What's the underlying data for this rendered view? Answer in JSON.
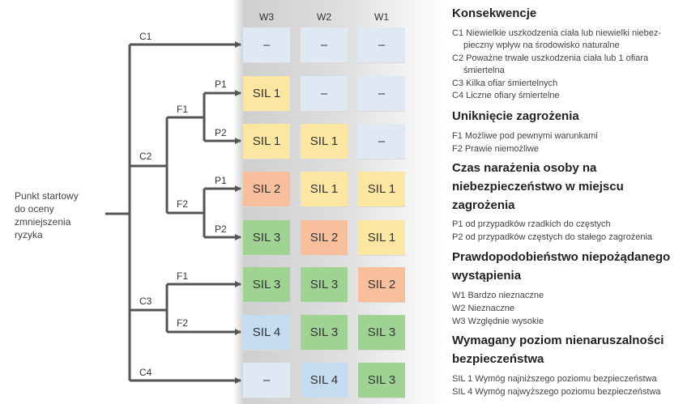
{
  "start_label": [
    "Punkt startowy",
    "do oceny",
    "zmniejszenia",
    "ryzyka"
  ],
  "columns": [
    "W3",
    "W2",
    "W1"
  ],
  "branches": {
    "c1": "C1",
    "c2": "C2",
    "c3": "C3",
    "c4": "C4",
    "c2_f1": "F1",
    "c2_f2": "F2",
    "c2_f1_p1": "P1",
    "c2_f1_p2": "P2",
    "c2_f2_p1": "P1",
    "c2_f2_p2": "P2",
    "c3_f1": "F1",
    "c3_f2": "F2"
  },
  "matrix": [
    [
      {
        "text": "–",
        "color": "blue"
      },
      {
        "text": "–",
        "color": "blue"
      },
      {
        "text": "–",
        "color": "blue"
      }
    ],
    [
      {
        "text": "SIL 1",
        "color": "yellow"
      },
      {
        "text": "–",
        "color": "blue"
      },
      {
        "text": "–",
        "color": "blue"
      }
    ],
    [
      {
        "text": "SIL 1",
        "color": "yellow"
      },
      {
        "text": "SIL 1",
        "color": "yellow"
      },
      {
        "text": "–",
        "color": "blue"
      }
    ],
    [
      {
        "text": "SIL 2",
        "color": "orange"
      },
      {
        "text": "SIL 1",
        "color": "yellow"
      },
      {
        "text": "SIL 1",
        "color": "yellow"
      }
    ],
    [
      {
        "text": "SIL 3",
        "color": "green"
      },
      {
        "text": "SIL 2",
        "color": "orange"
      },
      {
        "text": "SIL 1",
        "color": "yellow"
      }
    ],
    [
      {
        "text": "SIL 3",
        "color": "green"
      },
      {
        "text": "SIL 3",
        "color": "green"
      },
      {
        "text": "SIL 2",
        "color": "orange"
      }
    ],
    [
      {
        "text": "SIL 4",
        "color": "sblue"
      },
      {
        "text": "SIL 3",
        "color": "green"
      },
      {
        "text": "SIL 3",
        "color": "green"
      }
    ],
    [
      {
        "text": "–",
        "color": "blue"
      },
      {
        "text": "SIL 4",
        "color": "sblue"
      },
      {
        "text": "SIL 3",
        "color": "green"
      }
    ]
  ],
  "colors": {
    "blue": "#dfe9f4",
    "sblue": "#c4dbf0",
    "yellow": "#fbe6a2",
    "orange": "#f7bf9b",
    "green": "#9ed394",
    "line": "#555555"
  },
  "legend": {
    "consequences_title": "Konsekwencje",
    "c1_a": "C1  Niewielkie uszkodzenia ciała lub niewielki niebez-",
    "c1_b": "pieczny wpływ na środowisko naturalne",
    "c2_a": "C2  Poważne trwałe uszkodzenia ciała lub 1 ofiara",
    "c2_b": "śmiertelna",
    "c3": "C3  Kilka ofiar śmiertelnych",
    "c4": "C4  Liczne ofiary śmiertelne",
    "avoid_title": "Uniknięcie zagrożenia",
    "f1": "F1  Możliwe pod pewnymi warunkami",
    "f2": "F2  Prawie niemożliwe",
    "exposure_title_1": "Czas narażenia osoby na",
    "exposure_title_2": "niebezpieczeństwo w miejscu",
    "exposure_title_3": "zagrożenia",
    "p1": "P1  od przypadków rzadkich do częstych",
    "p2": "P2  od przypadków częstych do stałego zagrożenia",
    "prob_title_1": "Prawdopodobieństwo niepożądanego",
    "prob_title_2": "wystąpienia",
    "w1": "W1  Bardzo nieznaczne",
    "w2": "W2  Nieznaczne",
    "w3": "W3  Względnie wysokie",
    "sil_title_1": "Wymagany poziom nienaruszalności",
    "sil_title_2": "bezpieczeństwa",
    "sil1": "SIL 1  Wymóg najniższego poziomu bezpieczeństwa",
    "sil4": "SIL 4  Wymóg najwyższego poziomu bezpieczeństwa"
  }
}
